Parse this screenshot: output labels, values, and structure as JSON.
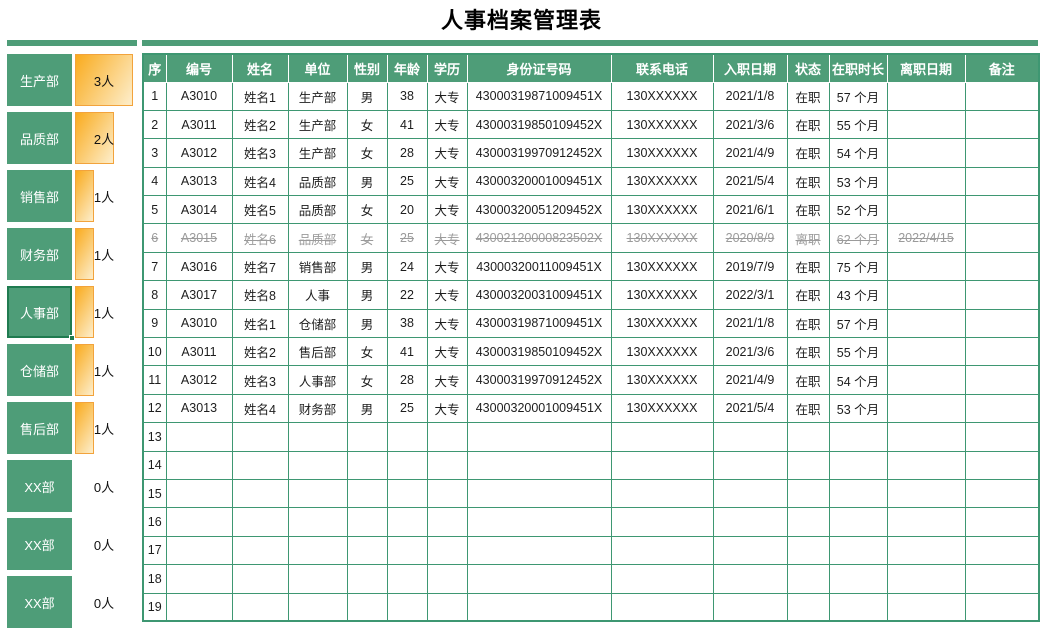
{
  "title": "人事档案管理表",
  "colors": {
    "green": "#4E9D78",
    "grid_green": "#3E9772",
    "selected_green": "#1F7B50",
    "bar_orange": "#F9AB1E",
    "bar_orange_light": "#FDEBC4",
    "bar_border_orange": "#F2A33C",
    "struck_text": "#9B9B9B",
    "header_text": "#FFFFFF"
  },
  "sidebar": {
    "departments": [
      {
        "name": "生产部",
        "count": "3人",
        "count_value": 3,
        "selected": false
      },
      {
        "name": "品质部",
        "count": "2人",
        "count_value": 2,
        "selected": false
      },
      {
        "name": "销售部",
        "count": "1人",
        "count_value": 1,
        "selected": false
      },
      {
        "name": "财务部",
        "count": "1人",
        "count_value": 1,
        "selected": false
      },
      {
        "name": "人事部",
        "count": "1人",
        "count_value": 1,
        "selected": true
      },
      {
        "name": "仓储部",
        "count": "1人",
        "count_value": 1,
        "selected": false
      },
      {
        "name": "售后部",
        "count": "1人",
        "count_value": 1,
        "selected": false
      },
      {
        "name": "XX部",
        "count": "0人",
        "count_value": 0,
        "selected": false
      },
      {
        "name": "XX部",
        "count": "0人",
        "count_value": 0,
        "selected": false
      },
      {
        "name": "XX部",
        "count": "0人",
        "count_value": 0,
        "selected": false
      }
    ],
    "bar_max": 3
  },
  "table": {
    "headers": [
      "序",
      "编号",
      "姓名",
      "单位",
      "性别",
      "年龄",
      "学历",
      "身份证号码",
      "联系电话",
      "入职日期",
      "状态",
      "在职时长",
      "离职日期",
      "备注"
    ],
    "rows": [
      {
        "struck": false,
        "cells": [
          "1",
          "A3010",
          "姓名1",
          "生产部",
          "男",
          "38",
          "大专",
          "43000319871009451X",
          "130XXXXXX",
          "2021/1/8",
          "在职",
          "57 个月",
          "",
          ""
        ]
      },
      {
        "struck": false,
        "cells": [
          "2",
          "A3011",
          "姓名2",
          "生产部",
          "女",
          "41",
          "大专",
          "43000319850109452X",
          "130XXXXXX",
          "2021/3/6",
          "在职",
          "55 个月",
          "",
          ""
        ]
      },
      {
        "struck": false,
        "cells": [
          "3",
          "A3012",
          "姓名3",
          "生产部",
          "女",
          "28",
          "大专",
          "43000319970912452X",
          "130XXXXXX",
          "2021/4/9",
          "在职",
          "54 个月",
          "",
          ""
        ]
      },
      {
        "struck": false,
        "cells": [
          "4",
          "A3013",
          "姓名4",
          "品质部",
          "男",
          "25",
          "大专",
          "43000320001009451X",
          "130XXXXXX",
          "2021/5/4",
          "在职",
          "53 个月",
          "",
          ""
        ]
      },
      {
        "struck": false,
        "cells": [
          "5",
          "A3014",
          "姓名5",
          "品质部",
          "女",
          "20",
          "大专",
          "43000320051209452X",
          "130XXXXXX",
          "2021/6/1",
          "在职",
          "52 个月",
          "",
          ""
        ]
      },
      {
        "struck": true,
        "cells": [
          "6",
          "A3015",
          "姓名6",
          "品质部",
          "女",
          "25",
          "大专",
          "43002120000823502X",
          "130XXXXXX",
          "2020/8/9",
          "离职",
          "62 个月",
          "2022/4/15",
          ""
        ]
      },
      {
        "struck": false,
        "cells": [
          "7",
          "A3016",
          "姓名7",
          "销售部",
          "男",
          "24",
          "大专",
          "43000320011009451X",
          "130XXXXXX",
          "2019/7/9",
          "在职",
          "75 个月",
          "",
          ""
        ]
      },
      {
        "struck": false,
        "cells": [
          "8",
          "A3017",
          "姓名8",
          "人事",
          "男",
          "22",
          "大专",
          "43000320031009451X",
          "130XXXXXX",
          "2022/3/1",
          "在职",
          "43 个月",
          "",
          ""
        ]
      },
      {
        "struck": false,
        "cells": [
          "9",
          "A3010",
          "姓名1",
          "仓储部",
          "男",
          "38",
          "大专",
          "43000319871009451X",
          "130XXXXXX",
          "2021/1/8",
          "在职",
          "57 个月",
          "",
          ""
        ]
      },
      {
        "struck": false,
        "cells": [
          "10",
          "A3011",
          "姓名2",
          "售后部",
          "女",
          "41",
          "大专",
          "43000319850109452X",
          "130XXXXXX",
          "2021/3/6",
          "在职",
          "55 个月",
          "",
          ""
        ]
      },
      {
        "struck": false,
        "cells": [
          "11",
          "A3012",
          "姓名3",
          "人事部",
          "女",
          "28",
          "大专",
          "43000319970912452X",
          "130XXXXXX",
          "2021/4/9",
          "在职",
          "54 个月",
          "",
          ""
        ]
      },
      {
        "struck": false,
        "cells": [
          "12",
          "A3013",
          "姓名4",
          "财务部",
          "男",
          "25",
          "大专",
          "43000320001009451X",
          "130XXXXXX",
          "2021/5/4",
          "在职",
          "53 个月",
          "",
          ""
        ]
      },
      {
        "struck": false,
        "cells": [
          "13",
          "",
          "",
          "",
          "",
          "",
          "",
          "",
          "",
          "",
          "",
          "",
          "",
          ""
        ]
      },
      {
        "struck": false,
        "cells": [
          "14",
          "",
          "",
          "",
          "",
          "",
          "",
          "",
          "",
          "",
          "",
          "",
          "",
          ""
        ]
      },
      {
        "struck": false,
        "cells": [
          "15",
          "",
          "",
          "",
          "",
          "",
          "",
          "",
          "",
          "",
          "",
          "",
          "",
          ""
        ]
      },
      {
        "struck": false,
        "cells": [
          "16",
          "",
          "",
          "",
          "",
          "",
          "",
          "",
          "",
          "",
          "",
          "",
          "",
          ""
        ]
      },
      {
        "struck": false,
        "cells": [
          "17",
          "",
          "",
          "",
          "",
          "",
          "",
          "",
          "",
          "",
          "",
          "",
          "",
          ""
        ]
      },
      {
        "struck": false,
        "cells": [
          "18",
          "",
          "",
          "",
          "",
          "",
          "",
          "",
          "",
          "",
          "",
          "",
          "",
          ""
        ]
      },
      {
        "struck": false,
        "cells": [
          "19",
          "",
          "",
          "",
          "",
          "",
          "",
          "",
          "",
          "",
          "",
          "",
          "",
          ""
        ]
      }
    ]
  }
}
